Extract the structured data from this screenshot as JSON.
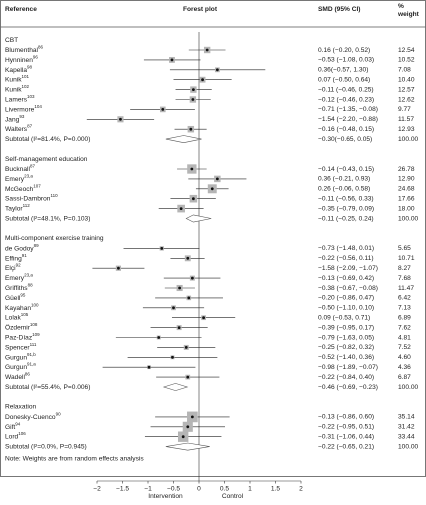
{
  "chart_data": {
    "type": "forest",
    "headers": {
      "reference": "Reference",
      "plot": "Forest plot",
      "smd": "SMD (95% CI)",
      "weight": "%\nweight"
    },
    "groups": [
      {
        "name": "CBT",
        "studies": [
          {
            "name": "Blumenthal",
            "ref": "86",
            "est": 0.16,
            "lo": -0.2,
            "hi": 0.52,
            "smd_label": "0.16 (−0.20, 0.52)",
            "weight": 12.54,
            "weight_label": "12.54"
          },
          {
            "name": "Hynninen",
            "ref": "96",
            "est": -0.53,
            "lo": -1.08,
            "hi": 0.03,
            "smd_label": "−0.53 (−1.08, 0.03)",
            "weight": 10.52,
            "weight_label": "10.52"
          },
          {
            "name": "Kapella",
            "ref": "98",
            "est": 0.36,
            "lo": -0.57,
            "hi": 1.3,
            "smd_label": "0.36(−0.57, 1.30)",
            "weight": 7.08,
            "weight_label": "7.08"
          },
          {
            "name": "Kunik",
            "ref": "101",
            "est": 0.07,
            "lo": -0.5,
            "hi": 0.64,
            "smd_label": "0.07 (−0.50, 0.64)",
            "weight": 10.4,
            "weight_label": "10.40"
          },
          {
            "name": "Kunik",
            "ref": "102",
            "est": -0.11,
            "lo": -0.46,
            "hi": 0.25,
            "smd_label": "−0.11 (−0.46, 0.25)",
            "weight": 12.57,
            "weight_label": "12.57"
          },
          {
            "name": "Lamers",
            "ref": "103",
            "est": -0.12,
            "lo": -0.46,
            "hi": 0.23,
            "smd_label": "−0.12 (−0.46, 0.23)",
            "weight": 12.62,
            "weight_label": "12.62"
          },
          {
            "name": "Livermore",
            "ref": "104",
            "est": -0.71,
            "lo": -1.35,
            "hi": -0.08,
            "smd_label": "−0.71 (−1.35, −0.08)",
            "weight": 9.77,
            "weight_label": "9.77"
          },
          {
            "name": "Jang",
            "ref": "93",
            "est": -1.54,
            "lo": -2.2,
            "hi": -0.88,
            "smd_label": "−1.54 (−2.20, −0.88)",
            "weight": 11.57,
            "weight_label": "11.57"
          },
          {
            "name": "Walters",
            "ref": "87",
            "est": -0.16,
            "lo": -0.48,
            "hi": 0.15,
            "smd_label": "−0.16 (−0.48, 0.15)",
            "weight": 12.93,
            "weight_label": "12.93"
          }
        ],
        "subtotal": {
          "label": "Subtotal (I²=81.4%, P=0.000)",
          "est": -0.3,
          "lo": -0.65,
          "hi": 0.05,
          "smd_label": "−0.30(−0.65, 0.05)",
          "weight": 100,
          "weight_label": "100.00"
        }
      },
      {
        "name": "Self-management education",
        "studies": [
          {
            "name": "Bucknall",
            "ref": "87",
            "est": -0.14,
            "lo": -0.43,
            "hi": 0.15,
            "smd_label": "−0.14 (−0.43, 0.15)",
            "weight": 26.78,
            "weight_label": "26.78"
          },
          {
            "name": "Emery",
            "ref": "23,a",
            "est": 0.36,
            "lo": -0.21,
            "hi": 0.93,
            "smd_label": "0.36 (−0.21, 0.93)",
            "weight": 12.9,
            "weight_label": "12.90"
          },
          {
            "name": "McGeoch",
            "ref": "107",
            "est": 0.26,
            "lo": -0.06,
            "hi": 0.58,
            "smd_label": "0.26 (−0.06, 0.58)",
            "weight": 24.68,
            "weight_label": "24.68"
          },
          {
            "name": "Sassi-Dambron",
            "ref": "110",
            "est": -0.11,
            "lo": -0.56,
            "hi": 0.33,
            "smd_label": "−0.11 (−0.56, 0.33)",
            "weight": 17.66,
            "weight_label": "17.66"
          },
          {
            "name": "Taylor",
            "ref": "112",
            "est": -0.35,
            "lo": -0.79,
            "hi": 0.09,
            "smd_label": "−0.35 (−0.79, 0.09)",
            "weight": 18.0,
            "weight_label": "18.00"
          }
        ],
        "subtotal": {
          "label": "Subtotal (I²=48.1%, P=0.103)",
          "est": -0.11,
          "lo": -0.25,
          "hi": 0.24,
          "smd_label": "−0.11 (−0.25, 0.24)",
          "weight": 100,
          "weight_label": "100.00"
        }
      },
      {
        "name": "Multi-component exercise training",
        "studies": [
          {
            "name": "de Godoy",
            "ref": "89",
            "est": -0.73,
            "lo": -1.48,
            "hi": 0.01,
            "smd_label": "−0.73 (−1.48, 0.01)",
            "weight": 5.65,
            "weight_label": "5.65"
          },
          {
            "name": "Effing",
            "ref": "91",
            "est": -0.22,
            "lo": -0.56,
            "hi": 0.11,
            "smd_label": "−0.22 (−0.56, 0.11)",
            "weight": 10.71,
            "weight_label": "10.71"
          },
          {
            "name": "Elçi",
            "ref": "92",
            "est": -1.58,
            "lo": -2.09,
            "hi": -1.07,
            "smd_label": "−1.58 (−2.09, −1.07)",
            "weight": 8.27,
            "weight_label": "8.27"
          },
          {
            "name": "Emery",
            "ref": "23,a",
            "est": -0.13,
            "lo": -0.69,
            "hi": 0.42,
            "smd_label": "−0.13 (−0.69, 0.42)",
            "weight": 7.68,
            "weight_label": "7.68"
          },
          {
            "name": "Griffiths",
            "ref": "88",
            "est": -0.38,
            "lo": -0.67,
            "hi": -0.08,
            "smd_label": "−0.38 (−0.67, −0.08)",
            "weight": 11.47,
            "weight_label": "11.47"
          },
          {
            "name": "Güell",
            "ref": "95",
            "est": -0.2,
            "lo": -0.86,
            "hi": 0.47,
            "smd_label": "−0.20 (−0.86, 0.47)",
            "weight": 6.42,
            "weight_label": "6.42"
          },
          {
            "name": "Kayahan",
            "ref": "100",
            "est": -0.5,
            "lo": -1.1,
            "hi": 0.1,
            "smd_label": "−0.50 (−1.10, 0.10)",
            "weight": 7.13,
            "weight_label": "7.13"
          },
          {
            "name": "Lolak",
            "ref": "105",
            "est": 0.09,
            "lo": -0.53,
            "hi": 0.71,
            "smd_label": "0.09 (−0.53, 0.71)",
            "weight": 6.89,
            "weight_label": "6.89"
          },
          {
            "name": "Özdemir",
            "ref": "108",
            "est": -0.39,
            "lo": -0.95,
            "hi": 0.17,
            "smd_label": "−0.39 (−0.95, 0.17)",
            "weight": 7.62,
            "weight_label": "7.62"
          },
          {
            "name": "Paz-Díaz",
            "ref": "109",
            "est": -0.79,
            "lo": -1.63,
            "hi": 0.05,
            "smd_label": "−0.79 (−1.63, 0.05)",
            "weight": 4.81,
            "weight_label": "4.81"
          },
          {
            "name": "Spencer",
            "ref": "111",
            "est": -0.25,
            "lo": -0.82,
            "hi": 0.32,
            "smd_label": "−0.25 (−0.82, 0.32)",
            "weight": 7.52,
            "weight_label": "7.52"
          },
          {
            "name": "Gurgun",
            "ref": "91,b",
            "est": -0.52,
            "lo": -1.4,
            "hi": 0.36,
            "smd_label": "−0.52 (−1.40, 0.36)",
            "weight": 4.6,
            "weight_label": "4.60"
          },
          {
            "name": "Gurgun",
            "ref": "91,a",
            "est": -0.98,
            "lo": -1.89,
            "hi": -0.07,
            "smd_label": "−0.98 (−1.89, −0.07)",
            "weight": 4.36,
            "weight_label": "4.36"
          },
          {
            "name": "Wadell",
            "ref": "86",
            "est": -0.22,
            "lo": -0.84,
            "hi": 0.4,
            "smd_label": "−0.22 (−0.84, 0.40)",
            "weight": 6.87,
            "weight_label": "6.87"
          }
        ],
        "subtotal": {
          "label": "Subtotal (I²=55.4%, P=0.006)",
          "est": -0.46,
          "lo": -0.69,
          "hi": -0.23,
          "smd_label": "−0.46 (−0.69, −0.23)",
          "weight": 100,
          "weight_label": "100.00"
        }
      },
      {
        "name": "Relaxation",
        "studies": [
          {
            "name": "Donesky-Cuenco",
            "ref": "90",
            "est": -0.13,
            "lo": -0.86,
            "hi": 0.6,
            "smd_label": "−0.13 (−0.86, 0.60)",
            "weight": 35.14,
            "weight_label": "35.14"
          },
          {
            "name": "Gift",
            "ref": "94",
            "est": -0.22,
            "lo": -0.95,
            "hi": 0.51,
            "smd_label": "−0.22 (−0.95, 0.51)",
            "weight": 31.42,
            "weight_label": "31.42"
          },
          {
            "name": "Lord",
            "ref": "106",
            "est": -0.31,
            "lo": -1.06,
            "hi": 0.44,
            "smd_label": "−0.31 (−1.06, 0.44)",
            "weight": 33.44,
            "weight_label": "33.44"
          }
        ],
        "subtotal": {
          "label": "Subtotal (I²=0.0%, P=0.945)",
          "est": -0.22,
          "lo": -0.65,
          "hi": 0.21,
          "smd_label": "−0.22 (−0.65, 0.21)",
          "weight": 100,
          "weight_label": "100.00"
        }
      }
    ],
    "note": "Note: Weights are from random effects analysis",
    "xlabel_left": "Intervention",
    "xlabel_right": "Control",
    "xlim": [
      -2,
      2
    ],
    "xticks": [
      {
        "value": -2,
        "label": "−2"
      },
      {
        "value": -1.5,
        "label": "−1.5"
      },
      {
        "value": -1,
        "label": "−1"
      },
      {
        "value": -0.5,
        "label": "−0.5"
      },
      0,
      0.5,
      1,
      1.5,
      2
    ]
  }
}
